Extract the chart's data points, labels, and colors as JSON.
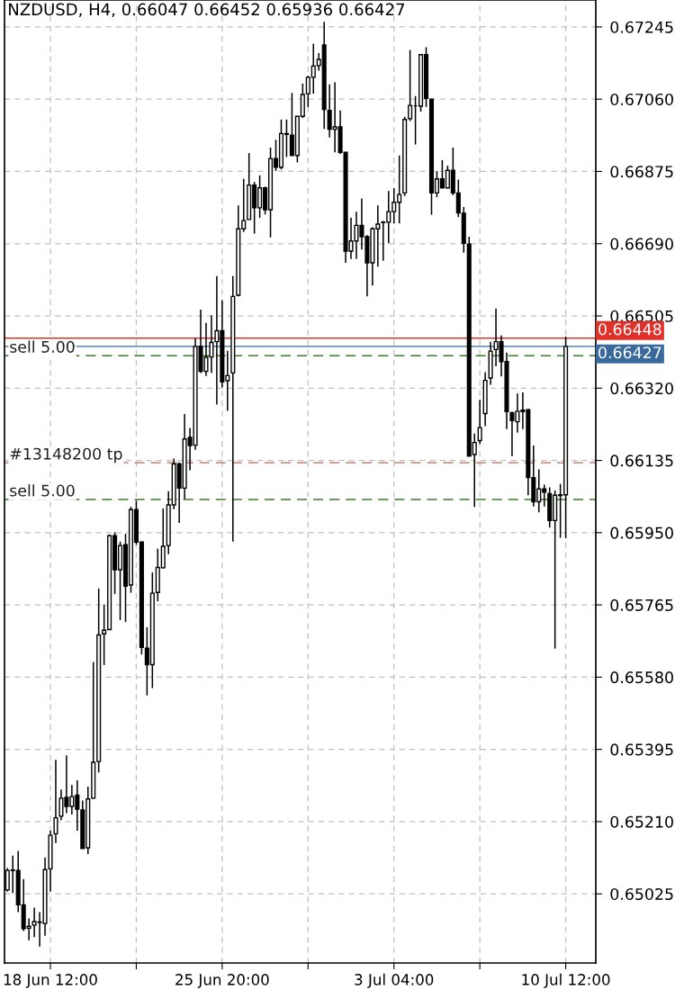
{
  "chart_data": {
    "type": "candlestick",
    "title": "NZDUSD, H4, 0.66047 0.66452 0.65936 0.66427",
    "categories": [
      null,
      null,
      null,
      null,
      null,
      null,
      null,
      null,
      "18 Jun 12:00",
      null,
      null,
      null,
      null,
      null,
      null,
      null,
      null,
      null,
      null,
      null,
      null,
      null,
      null,
      null,
      null,
      null,
      null,
      null,
      null,
      null,
      null,
      null,
      null,
      null,
      null,
      null,
      null,
      null,
      null,
      null,
      "25 Jun 20:00",
      null,
      null,
      null,
      null,
      null,
      null,
      null,
      null,
      null,
      null,
      null,
      null,
      null,
      null,
      null,
      null,
      null,
      null,
      null,
      null,
      null,
      null,
      null,
      null,
      null,
      null,
      null,
      null,
      null,
      null,
      null,
      "3 Jul 04:00",
      null,
      null,
      null,
      null,
      null,
      null,
      null,
      null,
      null,
      null,
      null,
      null,
      null,
      null,
      null,
      null,
      null,
      null,
      null,
      null,
      null,
      null,
      null,
      null,
      null,
      null,
      null,
      null,
      null,
      null,
      null,
      "10 Jul 12:00"
    ],
    "ohlc": [
      [
        0.65035,
        0.65091,
        0.65031,
        0.65085
      ],
      [
        0.65085,
        0.65123,
        0.65027,
        0.65086
      ],
      [
        0.65085,
        0.65135,
        0.64978,
        0.64997
      ],
      [
        0.64997,
        0.65063,
        0.6493,
        0.64936
      ],
      [
        0.64937,
        0.64962,
        0.64906,
        0.64942
      ],
      [
        0.64945,
        0.6499,
        0.64914,
        0.64954
      ],
      [
        0.64952,
        0.64978,
        0.6489,
        0.64953
      ],
      [
        0.64949,
        0.65118,
        0.64918,
        0.65087
      ],
      [
        0.65089,
        0.65187,
        0.65031,
        0.65175
      ],
      [
        0.65179,
        0.65368,
        0.65155,
        0.6522
      ],
      [
        0.65224,
        0.65292,
        0.65214,
        0.6527
      ],
      [
        0.65272,
        0.6538,
        0.65232,
        0.65249
      ],
      [
        0.65249,
        0.65304,
        0.65228,
        0.65274
      ],
      [
        0.65278,
        0.65316,
        0.65187,
        0.65242
      ],
      [
        0.6524,
        0.65264,
        0.65141,
        0.65141
      ],
      [
        0.65143,
        0.653,
        0.65127,
        0.65268
      ],
      [
        0.6527,
        0.65619,
        0.65268,
        0.65362
      ],
      [
        0.65364,
        0.65807,
        0.65336,
        0.65688
      ],
      [
        0.65691,
        0.65766,
        0.65611,
        0.657
      ],
      [
        0.65702,
        0.65945,
        0.65702,
        0.65942
      ],
      [
        0.65942,
        0.65951,
        0.65793,
        0.65855
      ],
      [
        0.65855,
        0.65927,
        0.65726,
        0.65917
      ],
      [
        0.65919,
        0.65947,
        0.65721,
        0.65813
      ],
      [
        0.65816,
        0.66016,
        0.65796,
        0.66009
      ],
      [
        0.66009,
        0.66032,
        0.65919,
        0.65926
      ],
      [
        0.65926,
        0.65927,
        0.65638,
        0.65656
      ],
      [
        0.65654,
        0.65708,
        0.65533,
        0.65612
      ],
      [
        0.65612,
        0.65848,
        0.65552,
        0.65795
      ],
      [
        0.65797,
        0.65909,
        0.65774,
        0.65861
      ],
      [
        0.6586,
        0.66012,
        0.65858,
        0.65915
      ],
      [
        0.65917,
        0.66056,
        0.65895,
        0.66021
      ],
      [
        0.66021,
        0.6614,
        0.6601,
        0.66126
      ],
      [
        0.66126,
        0.6613,
        0.65975,
        0.66064
      ],
      [
        0.66064,
        0.66254,
        0.66036,
        0.6619
      ],
      [
        0.66194,
        0.66218,
        0.6611,
        0.66173
      ],
      [
        0.66174,
        0.66448,
        0.66162,
        0.66427
      ],
      [
        0.66427,
        0.66521,
        0.66359,
        0.66363
      ],
      [
        0.66363,
        0.66487,
        0.66351,
        0.66399
      ],
      [
        0.664,
        0.66507,
        0.66359,
        0.66437
      ],
      [
        0.66439,
        0.66607,
        0.66278,
        0.66467
      ],
      [
        0.66467,
        0.66545,
        0.66322,
        0.66336
      ],
      [
        0.66339,
        0.66416,
        0.66262,
        0.66352
      ],
      [
        0.66359,
        0.66607,
        0.65927,
        0.66555
      ],
      [
        0.66558,
        0.66788,
        0.66555,
        0.66728
      ],
      [
        0.66728,
        0.66856,
        0.6672,
        0.66749
      ],
      [
        0.66752,
        0.66922,
        0.66752,
        0.6684
      ],
      [
        0.6684,
        0.66848,
        0.66716,
        0.66782
      ],
      [
        0.66782,
        0.66865,
        0.66756,
        0.66833
      ],
      [
        0.66833,
        0.66836,
        0.66765,
        0.66777
      ],
      [
        0.66777,
        0.66936,
        0.66706,
        0.66908
      ],
      [
        0.66908,
        0.66956,
        0.66876,
        0.66886
      ],
      [
        0.66886,
        0.67008,
        0.6688,
        0.66972
      ],
      [
        0.66972,
        0.67008,
        0.66912,
        0.6697
      ],
      [
        0.66968,
        0.67076,
        0.66916,
        0.66916
      ],
      [
        0.66916,
        0.67016,
        0.66898,
        0.67016
      ],
      [
        0.67016,
        0.671,
        0.67012,
        0.67072
      ],
      [
        0.67074,
        0.6712,
        0.6704,
        0.67116
      ],
      [
        0.67116,
        0.67202,
        0.67074,
        0.67145
      ],
      [
        0.67146,
        0.67178,
        0.67133,
        0.67162
      ],
      [
        0.67199,
        0.67258,
        0.66984,
        0.67034
      ],
      [
        0.67031,
        0.67098,
        0.66962,
        0.66983
      ],
      [
        0.66983,
        0.67103,
        0.66924,
        0.66989
      ],
      [
        0.66989,
        0.67031,
        0.6692,
        0.66924
      ],
      [
        0.66924,
        0.66924,
        0.66641,
        0.66671
      ],
      [
        0.66671,
        0.66756,
        0.66651,
        0.66697
      ],
      [
        0.66697,
        0.66772,
        0.66651,
        0.66737
      ],
      [
        0.66737,
        0.66806,
        0.66675,
        0.66708
      ],
      [
        0.66708,
        0.66712,
        0.66555,
        0.66641
      ],
      [
        0.66641,
        0.66732,
        0.66583,
        0.66728
      ],
      [
        0.66728,
        0.66788,
        0.66631,
        0.6674
      ],
      [
        0.66744,
        0.66748,
        0.66646,
        0.66745
      ],
      [
        0.66745,
        0.66825,
        0.66691,
        0.66772
      ],
      [
        0.66772,
        0.66832,
        0.66742,
        0.66796
      ],
      [
        0.66796,
        0.66916,
        0.66742,
        0.66816
      ],
      [
        0.6682,
        0.67015,
        0.66812,
        0.67008
      ],
      [
        0.6701,
        0.67186,
        0.67004,
        0.67044
      ],
      [
        0.67043,
        0.67068,
        0.66944,
        0.67043
      ],
      [
        0.67042,
        0.67174,
        0.67028,
        0.67174
      ],
      [
        0.67174,
        0.67193,
        0.6704,
        0.67062
      ],
      [
        0.6706,
        0.6706,
        0.66764,
        0.6682
      ],
      [
        0.6682,
        0.66876,
        0.66809,
        0.66856
      ],
      [
        0.66856,
        0.66904,
        0.66832,
        0.66833
      ],
      [
        0.66833,
        0.6689,
        0.66832,
        0.66878
      ],
      [
        0.66878,
        0.66936,
        0.66814,
        0.6682
      ],
      [
        0.6682,
        0.66854,
        0.66758,
        0.66769
      ],
      [
        0.66768,
        0.66784,
        0.66667,
        0.66691
      ],
      [
        0.66689,
        0.66708,
        0.66146,
        0.66146
      ],
      [
        0.6615,
        0.66204,
        0.66016,
        0.66181
      ],
      [
        0.66186,
        0.6629,
        0.66177,
        0.66219
      ],
      [
        0.66255,
        0.66361,
        0.66223,
        0.6634
      ],
      [
        0.66346,
        0.66439,
        0.66329,
        0.66415
      ],
      [
        0.66419,
        0.66524,
        0.66376,
        0.66439
      ],
      [
        0.66439,
        0.66455,
        0.6635,
        0.66388
      ],
      [
        0.66388,
        0.66411,
        0.66215,
        0.6626
      ],
      [
        0.66257,
        0.6626,
        0.66146,
        0.66237
      ],
      [
        0.66234,
        0.66306,
        0.66206,
        0.66261
      ],
      [
        0.66264,
        0.66309,
        0.66215,
        0.6626
      ],
      [
        0.66265,
        0.66267,
        0.66046,
        0.66091
      ],
      [
        0.66091,
        0.66173,
        0.66017,
        0.66029
      ],
      [
        0.66029,
        0.66112,
        0.66002,
        0.66062
      ],
      [
        0.66062,
        0.66073,
        0.66017,
        0.66054
      ],
      [
        0.6605,
        0.66066,
        0.65963,
        0.65981
      ],
      [
        0.65981,
        0.66058,
        0.65653,
        0.66046
      ],
      [
        0.66047,
        0.66075,
        0.65937,
        0.66045
      ],
      [
        0.66047,
        0.66452,
        0.65936,
        0.66427
      ]
    ],
    "ylim": [
      0.64848,
      0.67314
    ],
    "yticks": [
      {
        "value": 0.65025,
        "label": "0.65025"
      },
      {
        "value": 0.6521,
        "label": "0.65210"
      },
      {
        "value": 0.65395,
        "label": "0.65395"
      },
      {
        "value": 0.6558,
        "label": "0.65580"
      },
      {
        "value": 0.65765,
        "label": "0.65765"
      },
      {
        "value": 0.6595,
        "label": "0.65950"
      },
      {
        "value": 0.66135,
        "label": "0.66135"
      },
      {
        "value": 0.6632,
        "label": "0.66320"
      },
      {
        "value": 0.66505,
        "label": "0.66505"
      },
      {
        "value": 0.6669,
        "label": "0.66690"
      },
      {
        "value": 0.66875,
        "label": "0.66875"
      },
      {
        "value": 0.6706,
        "label": "0.67060"
      },
      {
        "value": 0.67245,
        "label": "0.67245"
      }
    ],
    "ref_lines": [
      {
        "axis": "y",
        "value": 0.66448,
        "label": "0.66448",
        "color": "#e0302a",
        "line_style": "solid"
      },
      {
        "axis": "y",
        "value": 0.66427,
        "label": "0.66427",
        "color": "#3a6a9c",
        "line_style": "solid"
      },
      {
        "axis": "y",
        "value": 0.66403,
        "label": "sell 5.00",
        "color": "#3c7a2e",
        "line_style": "dashed"
      },
      {
        "axis": "y",
        "value": 0.66129,
        "label": "#13148200 tp",
        "color": "#c0644e",
        "line_style": "dashed"
      },
      {
        "axis": "y",
        "value": 0.66035,
        "label": "sell 5.00",
        "color": "#3c7a2e",
        "line_style": "dashed"
      }
    ],
    "grid": true,
    "legend": false
  }
}
